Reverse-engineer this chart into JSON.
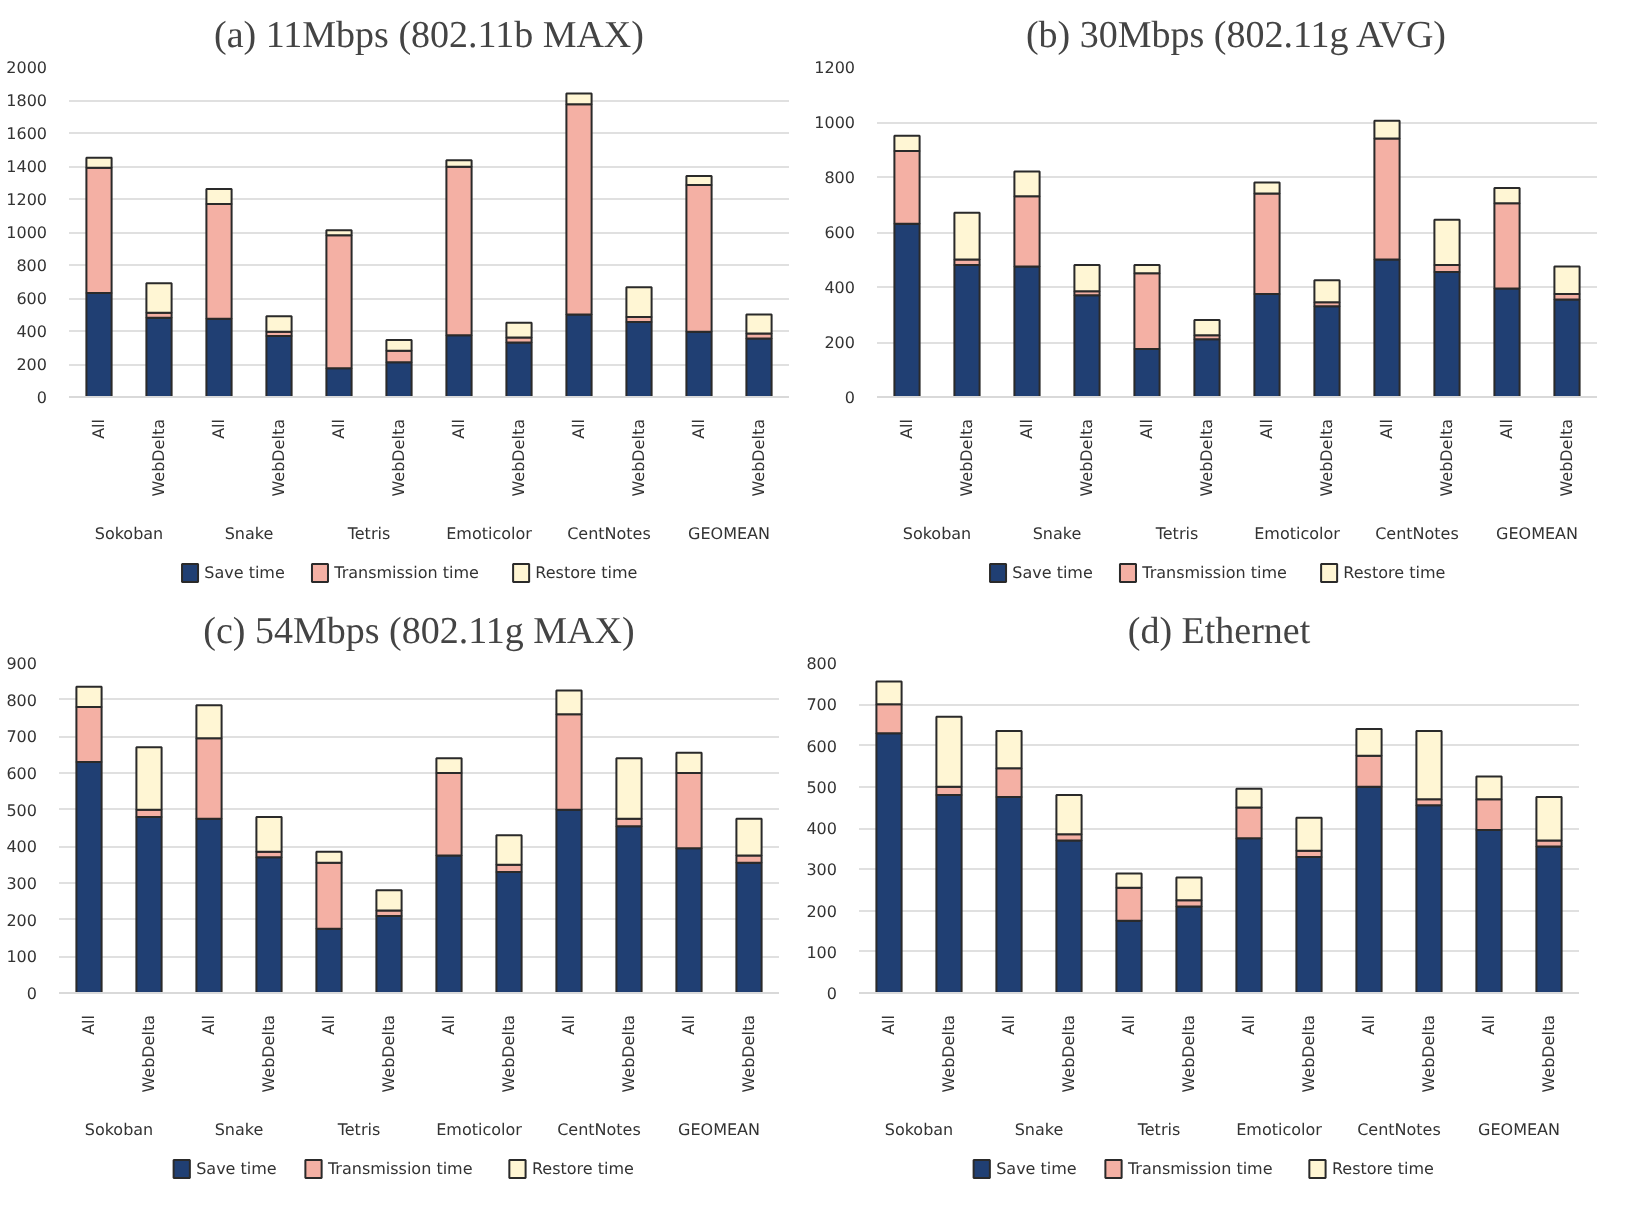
{
  "chart_data": [
    {
      "type": "bar",
      "stacked": true,
      "title": "(a) 11Mbps (802.11b MAX)",
      "categories": [
        "All",
        "WebDelta",
        "All",
        "WebDelta",
        "All",
        "WebDelta",
        "All",
        "WebDelta",
        "All",
        "WebDelta",
        "All",
        "WebDelta"
      ],
      "annotations": [
        "Sokoban",
        "Snake",
        "Tetris",
        "Emoticolor",
        "CentNotes",
        "GEOMEAN"
      ],
      "ylim": [
        0,
        2000
      ],
      "yticks": [
        0,
        200,
        400,
        600,
        800,
        1000,
        1200,
        1400,
        1600,
        1800,
        2000
      ],
      "grid": "y",
      "legend": "bottom",
      "series": [
        {
          "name": "Save time",
          "color": "#203f73",
          "values": [
            630,
            480,
            475,
            370,
            175,
            210,
            375,
            330,
            500,
            455,
            395,
            355
          ]
        },
        {
          "name": "Transmission time",
          "color": "#f4b0a4",
          "values": [
            760,
            30,
            695,
            25,
            805,
            70,
            1020,
            30,
            1275,
            30,
            890,
            30
          ]
        },
        {
          "name": "Restore time",
          "color": "#fff6d4",
          "values": [
            60,
            180,
            90,
            95,
            30,
            65,
            40,
            90,
            65,
            180,
            55,
            115
          ]
        }
      ]
    },
    {
      "type": "bar",
      "stacked": true,
      "title": "(b) 30Mbps (802.11g AVG)",
      "categories": [
        "All",
        "WebDelta",
        "All",
        "WebDelta",
        "All",
        "WebDelta",
        "All",
        "WebDelta",
        "All",
        "WebDelta",
        "All",
        "WebDelta"
      ],
      "annotations": [
        "Sokoban",
        "Snake",
        "Tetris",
        "Emoticolor",
        "CentNotes",
        "GEOMEAN"
      ],
      "ylim": [
        0,
        1200
      ],
      "yticks": [
        0,
        200,
        400,
        600,
        800,
        1000,
        1200
      ],
      "grid": "y",
      "legend": "bottom",
      "series": [
        {
          "name": "Save time",
          "color": "#203f73",
          "values": [
            630,
            480,
            475,
            370,
            175,
            210,
            375,
            330,
            500,
            455,
            395,
            355
          ]
        },
        {
          "name": "Transmission time",
          "color": "#f4b0a4",
          "values": [
            265,
            20,
            255,
            15,
            275,
            15,
            365,
            15,
            440,
            25,
            310,
            20
          ]
        },
        {
          "name": "Restore time",
          "color": "#fff6d4",
          "values": [
            55,
            170,
            90,
            95,
            30,
            55,
            40,
            80,
            65,
            165,
            55,
            100
          ]
        }
      ]
    },
    {
      "type": "bar",
      "stacked": true,
      "title": "(c) 54Mbps (802.11g MAX)",
      "categories": [
        "All",
        "WebDelta",
        "All",
        "WebDelta",
        "All",
        "WebDelta",
        "All",
        "WebDelta",
        "All",
        "WebDelta",
        "All",
        "WebDelta"
      ],
      "annotations": [
        "Sokoban",
        "Snake",
        "Tetris",
        "Emoticolor",
        "CentNotes",
        "GEOMEAN"
      ],
      "ylim": [
        0,
        900
      ],
      "yticks": [
        0,
        100,
        200,
        300,
        400,
        500,
        600,
        700,
        800,
        900
      ],
      "grid": "y",
      "legend": "bottom",
      "series": [
        {
          "name": "Save time",
          "color": "#203f73",
          "values": [
            630,
            480,
            475,
            370,
            175,
            210,
            375,
            330,
            500,
            455,
            395,
            355
          ]
        },
        {
          "name": "Transmission time",
          "color": "#f4b0a4",
          "values": [
            150,
            20,
            220,
            15,
            180,
            15,
            225,
            20,
            260,
            20,
            205,
            20
          ]
        },
        {
          "name": "Restore time",
          "color": "#fff6d4",
          "values": [
            55,
            170,
            90,
            95,
            30,
            55,
            40,
            80,
            65,
            165,
            55,
            100
          ]
        }
      ]
    },
    {
      "type": "bar",
      "stacked": true,
      "title": "(d) Ethernet",
      "categories": [
        "All",
        "WebDelta",
        "All",
        "WebDelta",
        "All",
        "WebDelta",
        "All",
        "WebDelta",
        "All",
        "WebDelta",
        "All",
        "WebDelta"
      ],
      "annotations": [
        "Sokoban",
        "Snake",
        "Tetris",
        "Emoticolor",
        "CentNotes",
        "GEOMEAN"
      ],
      "ylim": [
        0,
        800
      ],
      "yticks": [
        0,
        100,
        200,
        300,
        400,
        500,
        600,
        700,
        800
      ],
      "grid": "y",
      "legend": "bottom",
      "series": [
        {
          "name": "Save time",
          "color": "#203f73",
          "values": [
            630,
            480,
            475,
            370,
            175,
            210,
            375,
            330,
            500,
            455,
            395,
            355
          ]
        },
        {
          "name": "Transmission time",
          "color": "#f4b0a4",
          "values": [
            70,
            20,
            70,
            15,
            80,
            15,
            75,
            15,
            75,
            15,
            75,
            15
          ]
        },
        {
          "name": "Restore time",
          "color": "#fff6d4",
          "values": [
            55,
            170,
            90,
            95,
            35,
            55,
            45,
            80,
            65,
            165,
            55,
            105
          ]
        }
      ]
    }
  ]
}
